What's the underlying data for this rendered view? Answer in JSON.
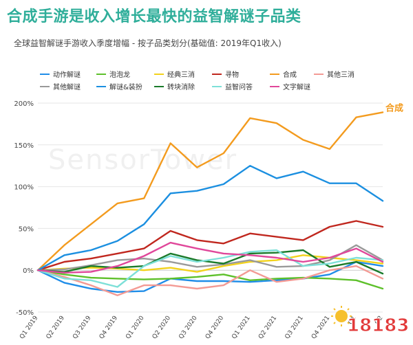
{
  "title": "合成手游是收入增长最快的益智解谜子品类",
  "subtitle": "全球益智解谜手游收入季度增幅 - 按子品类划分(基础值: 2019年Q1收入)",
  "watermark": "SensorTower",
  "badge_text": "18183",
  "chart_data": {
    "type": "line",
    "x": [
      "Q1 2019",
      "Q2 2019",
      "Q3 2019",
      "Q4 2019",
      "Q1 2020",
      "Q2 2020",
      "Q3 2020",
      "Q4 2020",
      "Q1 2021",
      "Q2 2021",
      "Q3 2021",
      "Q4 2021",
      "Q1 2022",
      "Q2 2022"
    ],
    "x_tick_labels": [
      "Q1 2019",
      "Q2 2019",
      "Q3 2019",
      "Q4 2019",
      "Q1 2020",
      "Q2 2020",
      "Q3 2020",
      "Q4 2020",
      "Q1 2021",
      "Q2 2021",
      "Q3 2021",
      "Q4 2021",
      "Q1",
      "Q2"
    ],
    "ylim": [
      -50,
      200
    ],
    "yticks": [
      -50,
      0,
      50,
      100,
      150,
      200
    ],
    "ytick_labels": [
      "-50%",
      "0%",
      "50%",
      "100%",
      "150%",
      "200%"
    ],
    "grid": "horizontal",
    "legend_position": "top",
    "end_label": {
      "series": "合成",
      "text": "合成"
    },
    "series": [
      {
        "name": "动作解谜",
        "color": "#1f8de8",
        "values": [
          0,
          -15,
          -22,
          -26,
          -25,
          -10,
          -13,
          -13,
          -14,
          -12,
          -10,
          -5,
          10,
          5
        ]
      },
      {
        "name": "泡泡龙",
        "color": "#5dc02a",
        "values": [
          0,
          -5,
          -9,
          -10,
          -11,
          -10,
          -8,
          -5,
          -12,
          -10,
          -9,
          -10,
          -12,
          -22
        ]
      },
      {
        "name": "经典三消",
        "color": "#f2d21b",
        "values": [
          0,
          2,
          3,
          2,
          0,
          3,
          -2,
          5,
          10,
          12,
          18,
          15,
          12,
          8
        ]
      },
      {
        "name": "寻物",
        "color": "#c0271e",
        "values": [
          0,
          10,
          14,
          20,
          26,
          47,
          36,
          32,
          44,
          40,
          36,
          52,
          59,
          52
        ]
      },
      {
        "name": "合成",
        "color": "#f39b1e",
        "values": [
          0,
          30,
          55,
          80,
          86,
          152,
          123,
          140,
          182,
          176,
          156,
          145,
          183,
          189
        ]
      },
      {
        "name": "其他三消",
        "color": "#f39a94",
        "values": [
          0,
          -8,
          -18,
          -30,
          -18,
          -18,
          -22,
          -18,
          0,
          -14,
          -10,
          0,
          5,
          -10
        ]
      },
      {
        "name": "其他解谜",
        "color": "#999999",
        "values": [
          0,
          1,
          6,
          12,
          14,
          10,
          4,
          7,
          12,
          4,
          5,
          12,
          30,
          12
        ]
      },
      {
        "name": "解谜&装扮",
        "color": "#1b8fe0",
        "values": [
          0,
          18,
          24,
          35,
          55,
          92,
          95,
          103,
          125,
          110,
          118,
          104,
          104,
          83
        ]
      },
      {
        "name": "转块消除",
        "color": "#1a7a2a",
        "values": [
          0,
          -2,
          5,
          3,
          5,
          20,
          12,
          8,
          20,
          21,
          24,
          4,
          10,
          -4
        ]
      },
      {
        "name": "益智问答",
        "color": "#7de0d8",
        "values": [
          0,
          -10,
          -12,
          -20,
          5,
          17,
          10,
          15,
          22,
          24,
          5,
          8,
          15,
          12
        ]
      },
      {
        "name": "文字解谜",
        "color": "#e0479a",
        "values": [
          0,
          -3,
          -2,
          5,
          17,
          33,
          26,
          20,
          18,
          15,
          10,
          15,
          26,
          10
        ]
      }
    ]
  }
}
